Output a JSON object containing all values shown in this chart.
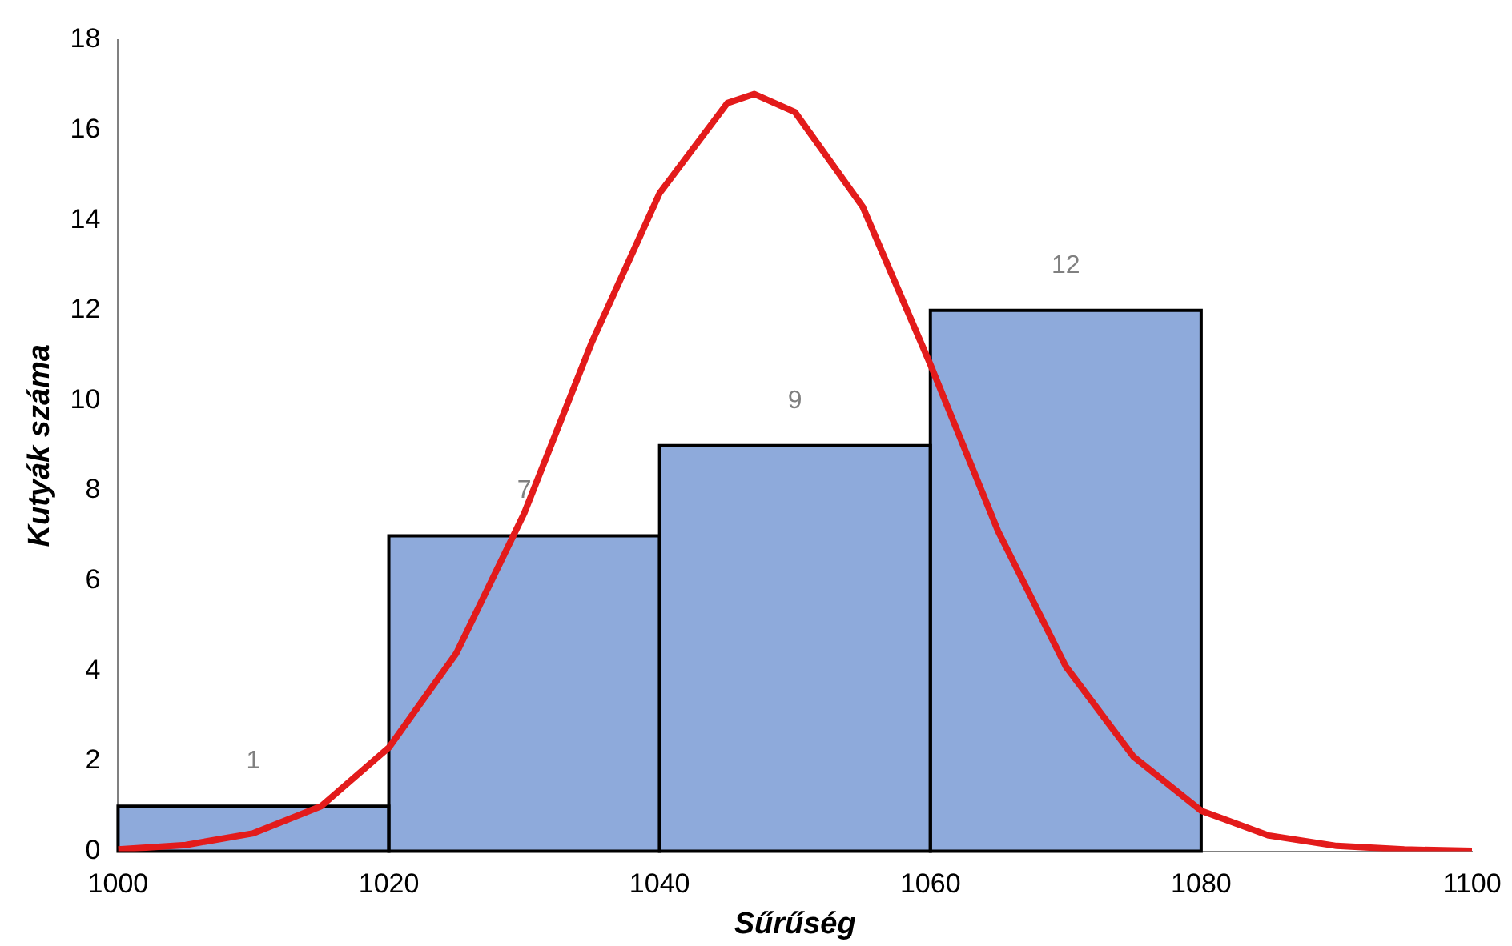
{
  "chart_data": {
    "type": "histogram",
    "xlabel": "Sűrűség",
    "ylabel": "Kutyák száma",
    "xlim": [
      1000,
      1100
    ],
    "xticks": [
      1000,
      1020,
      1040,
      1060,
      1080,
      1100
    ],
    "ylim": [
      0,
      18
    ],
    "yticks": [
      0,
      2,
      4,
      6,
      8,
      10,
      12,
      14,
      16,
      18
    ],
    "grid": false,
    "legend": false,
    "marker": "none",
    "line_style": "solid",
    "series": [
      {
        "color": "#8eaadb",
        "bins": [
          1000,
          1020,
          1040,
          1060,
          1080
        ],
        "values": [
          1,
          7,
          9,
          12
        ],
        "value_labels": [
          "1",
          "7",
          "9",
          "12"
        ]
      },
      {
        "type": "line",
        "color": "#e31b1b",
        "x": [
          1000,
          1005,
          1010,
          1015,
          1020,
          1025,
          1030,
          1035,
          1040,
          1045,
          1047,
          1050,
          1055,
          1060,
          1065,
          1070,
          1075,
          1080,
          1085,
          1090,
          1095,
          1100
        ],
        "values": [
          0.04,
          0.14,
          0.4,
          1.0,
          2.3,
          4.4,
          7.5,
          11.3,
          14.6,
          16.6,
          16.8,
          16.4,
          14.3,
          10.8,
          7.1,
          4.1,
          2.1,
          0.9,
          0.35,
          0.12,
          0.04,
          0.01
        ]
      }
    ]
  }
}
